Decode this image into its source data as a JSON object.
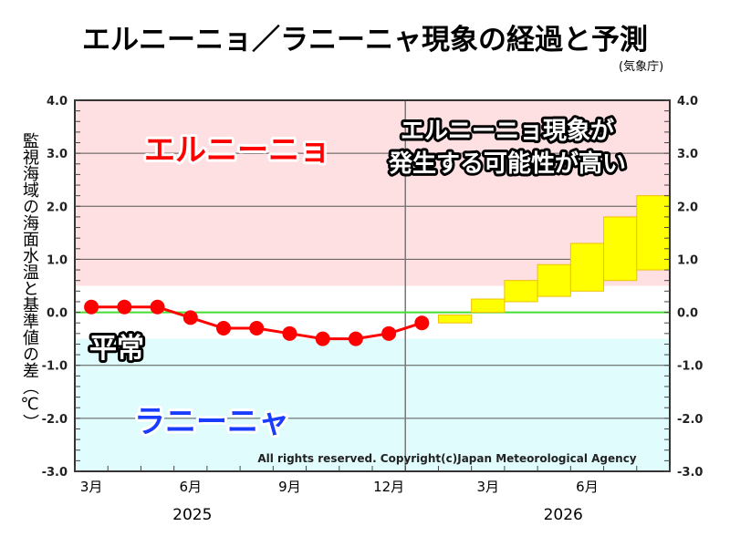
{
  "title": "エルニーニョ／ラニーニャ現象の経過と予測",
  "source": "(気象庁)",
  "copyright": "All rights reserved. Copyright(c)Japan Meteorological Agency",
  "annotations": {
    "el_nino": "エルニーニョ",
    "normal": "平常",
    "la_nina": "ラニーニャ",
    "outlook_line1": "エルニーニョ現象が",
    "outlook_line2": "発生する可能性が高い"
  },
  "colors": {
    "el_nino_band": "#ffe0e2",
    "la_nina_band": "#e0fcfd",
    "observed": "#ff0000",
    "forecast": "#ffff00",
    "forecast_edge": "#f0c000",
    "zero_line": "#44dd33",
    "el_nino_text": "#ff0000",
    "la_nina_text": "#1a3cff"
  },
  "chart_data": {
    "type": "line",
    "title": "エルニーニョ／ラニーニャ現象の経過と予測",
    "ylabel": "監視海域の海面水温と基準値の差（℃）",
    "ylim": [
      -3.0,
      4.0
    ],
    "yticks": [
      "4.0",
      "3.0",
      "2.0",
      "1.0",
      "0.0",
      "-1.0",
      "-2.0",
      "-3.0"
    ],
    "xlim": [
      "2025-02-15",
      "2026-08-15"
    ],
    "xtick_labels": [
      {
        "month": "2025-03",
        "label": "3月"
      },
      {
        "month": "2025-06",
        "label": "6月"
      },
      {
        "month": "2025-09",
        "label": "9月"
      },
      {
        "month": "2025-12",
        "label": "12月"
      },
      {
        "month": "2026-03",
        "label": "3月"
      },
      {
        "month": "2026-06",
        "label": "6月"
      }
    ],
    "year_labels": [
      {
        "month": "2025-06",
        "label": "2025"
      },
      {
        "month": "2026-05",
        "label": "2026"
      }
    ],
    "bands": {
      "el_nino_threshold": 0.5,
      "la_nina_threshold": -0.5
    },
    "year_boundary": "2026-01",
    "grid": "horizontal at integer values",
    "observed": {
      "months": [
        "2025-03",
        "2025-04",
        "2025-05",
        "2025-06",
        "2025-07",
        "2025-08",
        "2025-09",
        "2025-10",
        "2025-11",
        "2025-12",
        "2026-01"
      ],
      "values": [
        0.1,
        0.1,
        0.1,
        -0.1,
        -0.3,
        -0.3,
        -0.4,
        -0.5,
        -0.5,
        -0.4,
        -0.2
      ]
    },
    "forecast_range": {
      "months": [
        "2026-02",
        "2026-03",
        "2026-04",
        "2026-05",
        "2026-06",
        "2026-07",
        "2026-08"
      ],
      "low": [
        -0.2,
        0.0,
        0.2,
        0.3,
        0.4,
        0.6,
        0.8
      ],
      "high": [
        -0.05,
        0.25,
        0.6,
        0.9,
        1.3,
        1.8,
        2.2
      ]
    }
  }
}
